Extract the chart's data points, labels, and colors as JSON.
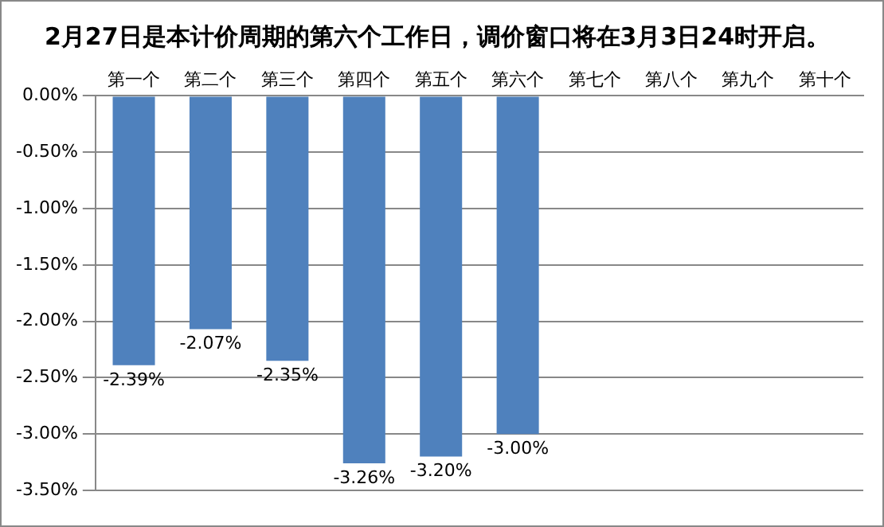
{
  "chart_data": {
    "type": "bar",
    "title": "2月27日是本计价周期的第六个工作日，调价窗口将在3月3日24时开启。",
    "categories": [
      "第一个",
      "第二个",
      "第三个",
      "第四个",
      "第五个",
      "第六个",
      "第七个",
      "第八个",
      "第九个",
      "第十个"
    ],
    "values": [
      -2.39,
      -2.07,
      -2.35,
      -3.26,
      -3.2,
      -3.0,
      null,
      null,
      null,
      null
    ],
    "value_labels": [
      "-2.39%",
      "-2.07%",
      "-2.35%",
      "-3.26%",
      "-3.20%",
      "-3.00%",
      null,
      null,
      null,
      null
    ],
    "color": "#4f81bd",
    "ylim": [
      -3.5,
      0
    ],
    "yticks": [
      {
        "value": 0,
        "label": "0.00%"
      },
      {
        "value": -0.5,
        "label": "-0.50%"
      },
      {
        "value": -1,
        "label": "-1.00%"
      },
      {
        "value": -1.5,
        "label": "-1.50%"
      },
      {
        "value": -2,
        "label": "-2.00%"
      },
      {
        "value": -2.5,
        "label": "-2.50%"
      },
      {
        "value": -3,
        "label": "-3.00%"
      },
      {
        "value": -3.5,
        "label": "-3.50%"
      }
    ],
    "grid": "y",
    "legend": false
  }
}
